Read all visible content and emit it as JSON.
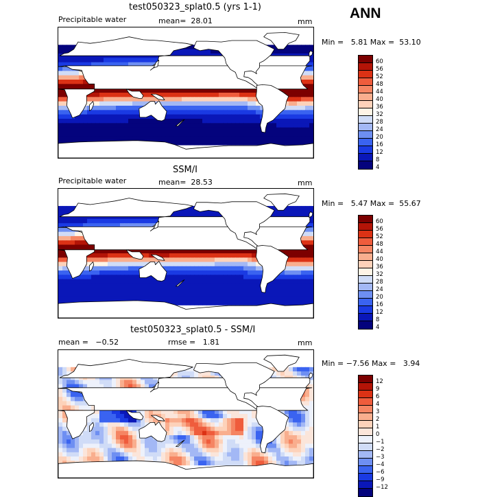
{
  "season": "ANN",
  "units": "mm",
  "colors": {
    "field": [
      "#04037d",
      "#0a17b8",
      "#1a3ae3",
      "#3a63f0",
      "#6e8ff2",
      "#a3b8f5",
      "#d0dcf7",
      "#fff4e6",
      "#fdd2ba",
      "#f9ae8e",
      "#f58563",
      "#ef5c3c",
      "#dc3215",
      "#b41407",
      "#7c0000"
    ],
    "diff": [
      "#04037d",
      "#0a17b8",
      "#1a3ae3",
      "#3a63f0",
      "#6e8ff2",
      "#a3b8f5",
      "#d0dcf7",
      "#edf1fb",
      "#fbe5da",
      "#fdd2ba",
      "#f9ae8e",
      "#f58563",
      "#ef5c3c",
      "#dc3215",
      "#b41407",
      "#7c0000"
    ]
  },
  "chart_data": [
    {
      "type": "heatmap",
      "title": "test050323_splat0.5 (yrs 1-1)",
      "subtitle": "Precipitable water",
      "mean_label": "mean=",
      "mean": "28.01",
      "units": "mm",
      "min_label": "Min =",
      "min": "5.81",
      "max_label": "Max =",
      "max": "53.10",
      "levels": [
        "60",
        "56",
        "52",
        "48",
        "44",
        "40",
        "36",
        "32",
        "28",
        "24",
        "20",
        "16",
        "12",
        "8",
        "4"
      ]
    },
    {
      "type": "heatmap",
      "title": "SSM/I",
      "subtitle": "Precipitable water",
      "mean_label": "mean=",
      "mean": "28.53",
      "units": "mm",
      "min_label": "Min =",
      "min": "5.47",
      "max_label": "Max =",
      "max": "55.67",
      "levels": [
        "60",
        "56",
        "52",
        "48",
        "44",
        "40",
        "36",
        "32",
        "28",
        "24",
        "20",
        "16",
        "12",
        "8",
        "4"
      ]
    },
    {
      "type": "heatmap",
      "title": "test050323_splat0.5 - SSM/I",
      "mean_label": "mean =",
      "mean": "−0.52",
      "rmse_label": "rmse =",
      "rmse": "1.81",
      "units": "mm",
      "min_label": "Min =",
      "min": "−7.56",
      "max_label": "Max =",
      "max": "3.94",
      "levels": [
        "12",
        "9",
        "6",
        "4",
        "3",
        "2",
        "1",
        "0",
        "−1",
        "−2",
        "−3",
        "−4",
        "−6",
        "−9",
        "−12"
      ]
    }
  ]
}
